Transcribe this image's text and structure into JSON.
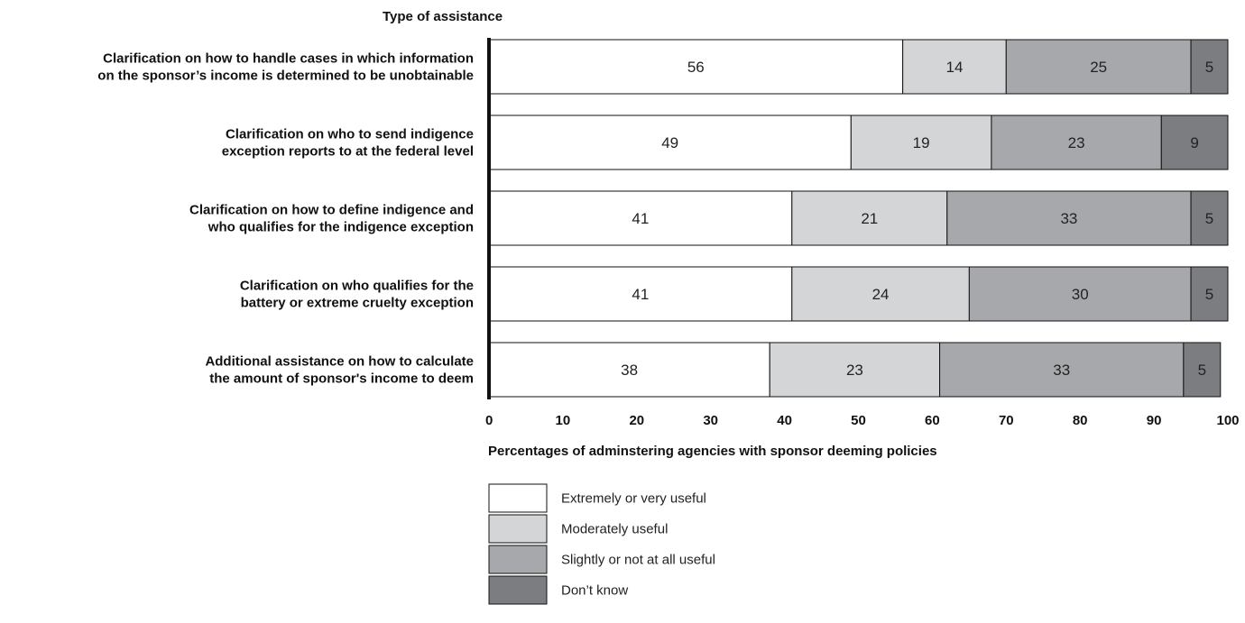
{
  "chart_data": {
    "type": "bar",
    "orientation": "horizontal",
    "stacked": true,
    "title": "Type of assistance",
    "xlabel": "Percentages of adminstering agencies with sponsor deeming policies",
    "ylabel": "",
    "xlim": [
      0,
      100
    ],
    "x_ticks": [
      "0",
      "10",
      "20",
      "30",
      "40",
      "50",
      "60",
      "70",
      "80",
      "90",
      "100"
    ],
    "categories": [
      "Clarification on how to handle cases in which information on the sponsor’s income is determined to be unobtainable",
      "Clarification on who to send indigence exception reports to at the federal level",
      "Clarification on how to define indigence and who qualifies for the indigence exception",
      "Clarification on who qualifies for the battery or extreme cruelty exception",
      "Additional assistance on how to calculate the amount of sponsor's income to deem"
    ],
    "category_lines": [
      [
        "Clarification on how to handle cases in which information",
        "on the sponsor’s income is determined to be unobtainable"
      ],
      [
        "Clarification on who to send indigence",
        "exception reports to at the federal level"
      ],
      [
        "Clarification on how to define indigence and",
        "who qualifies for the indigence exception"
      ],
      [
        "Clarification on who qualifies for the",
        "battery or extreme cruelty exception"
      ],
      [
        "Additional assistance on how to calculate",
        "the amount of sponsor's income to deem"
      ]
    ],
    "series": [
      {
        "name": "Extremely or very useful",
        "color": "#ffffff",
        "values": [
          56,
          49,
          41,
          41,
          38
        ]
      },
      {
        "name": "Moderately useful",
        "color": "#d4d5d7",
        "values": [
          14,
          19,
          21,
          24,
          23
        ]
      },
      {
        "name": "Slightly or not at all useful",
        "color": "#a7a8ab",
        "values": [
          25,
          23,
          33,
          30,
          33
        ]
      },
      {
        "name": "Don’t know",
        "color": "#7c7d80",
        "values": [
          5,
          9,
          5,
          5,
          5
        ]
      }
    ],
    "legend_position": "bottom",
    "grid": false
  }
}
